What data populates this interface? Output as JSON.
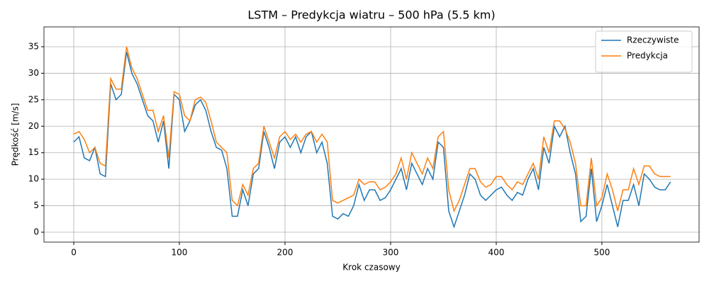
{
  "chart_data": {
    "type": "line",
    "title": "LSTM – Predykcja wiatru – 500 hPa (5.5 km)",
    "xlabel": "Krok czasowy",
    "ylabel": "Prędkość [m/s]",
    "x": [
      0,
      5,
      10,
      15,
      20,
      25,
      30,
      35,
      40,
      45,
      50,
      55,
      60,
      65,
      70,
      75,
      80,
      85,
      90,
      95,
      100,
      105,
      110,
      115,
      120,
      125,
      130,
      135,
      140,
      145,
      150,
      155,
      160,
      165,
      170,
      175,
      180,
      185,
      190,
      195,
      200,
      205,
      210,
      215,
      220,
      225,
      230,
      235,
      240,
      245,
      250,
      255,
      260,
      265,
      270,
      275,
      280,
      285,
      290,
      295,
      300,
      305,
      310,
      315,
      320,
      325,
      330,
      335,
      340,
      345,
      350,
      355,
      360,
      365,
      370,
      375,
      380,
      385,
      390,
      395,
      400,
      405,
      410,
      415,
      420,
      425,
      430,
      435,
      440,
      445,
      450,
      455,
      460,
      465,
      470,
      475,
      480,
      485,
      490,
      495,
      500,
      505,
      510,
      515,
      520,
      525,
      530,
      535,
      540,
      545,
      550,
      555,
      560,
      565
    ],
    "series": [
      {
        "name": "Rzeczywiste",
        "color": "#1f77b4",
        "values": [
          17,
          18,
          14,
          13.5,
          16,
          11,
          10.5,
          28,
          25,
          26,
          34,
          30,
          28,
          25,
          22,
          21,
          17,
          21,
          12,
          26,
          25,
          19,
          21,
          24,
          25,
          23,
          19,
          16,
          15.5,
          12,
          3,
          3,
          8,
          5,
          11,
          12,
          19,
          16,
          12,
          17,
          18,
          16,
          18,
          15,
          18,
          19,
          15,
          17,
          13,
          3,
          2.5,
          3.5,
          3,
          5,
          9,
          6,
          8,
          8,
          6,
          6.5,
          8,
          10,
          12,
          8,
          13,
          11,
          9,
          12,
          10,
          17,
          16,
          4,
          1,
          4,
          7,
          11,
          10,
          7,
          6,
          7,
          8,
          8.5,
          7,
          6,
          7.5,
          7,
          10,
          12,
          8,
          16,
          13,
          20,
          18,
          20,
          15,
          11,
          2,
          3,
          12,
          2,
          5,
          9,
          5,
          1,
          6,
          6,
          9,
          5,
          11,
          10,
          8.5,
          8,
          8,
          9.5
        ]
      },
      {
        "name": "Predykcja",
        "color": "#ff7f0e",
        "values": [
          18.5,
          19,
          17.5,
          15,
          16,
          13,
          12.5,
          29,
          27,
          27,
          35,
          31,
          29,
          26,
          23,
          23,
          19,
          22,
          14,
          26.5,
          26,
          22,
          21,
          25,
          25.5,
          24.5,
          21,
          17,
          16,
          15,
          6,
          5,
          9,
          7,
          12,
          13,
          20,
          17,
          14,
          18,
          19,
          17.5,
          18.5,
          17,
          18.5,
          19,
          17,
          18.5,
          17,
          6,
          5.5,
          6,
          6.5,
          7,
          10,
          9,
          9.5,
          9.5,
          8,
          8.5,
          9.5,
          11,
          14,
          10,
          15,
          13,
          11,
          14,
          12,
          18,
          19,
          8,
          4,
          6,
          9,
          12,
          12,
          9.5,
          8.5,
          9,
          10.5,
          10.5,
          9,
          8,
          9.5,
          9,
          11,
          13,
          10,
          18,
          15,
          21,
          21,
          19.5,
          17,
          13,
          5,
          5,
          14,
          5,
          6.5,
          11,
          8,
          4,
          8,
          8,
          12,
          9,
          12.5,
          12.5,
          11,
          10.5,
          10.5,
          10.5
        ]
      }
    ],
    "xlim": [
      -28.2,
      592
    ],
    "ylim": [
      -1.87,
      38.74
    ],
    "xticks": [
      0,
      100,
      200,
      300,
      400,
      500
    ],
    "yticks": [
      0,
      5,
      10,
      15,
      20,
      25,
      30,
      35
    ],
    "grid": true,
    "legend": "upper right"
  }
}
